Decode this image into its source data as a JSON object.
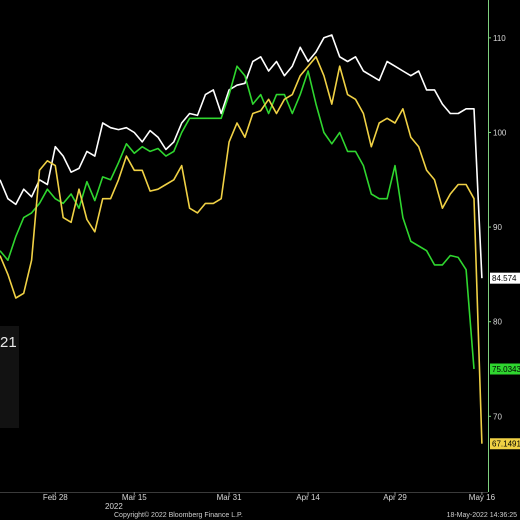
{
  "chart_data": {
    "type": "line",
    "title": "",
    "xlabel": "",
    "ylabel": "",
    "ylim": [
      62,
      114
    ],
    "yticks": [
      70,
      80,
      90,
      100,
      110
    ],
    "x_tick_labels": [
      {
        "label": "Feb 28",
        "index": 7
      },
      {
        "label": "Mar 15",
        "index": 17
      },
      {
        "label": "Mar 31",
        "index": 29
      },
      {
        "label": "Apr 14",
        "index": 39
      },
      {
        "label": "Apr 29",
        "index": 50
      },
      {
        "label": "May 16",
        "index": 61
      }
    ],
    "year_label": "2022",
    "legend_fragment": "21",
    "grid": false,
    "series": [
      {
        "color": "#ffffff",
        "last_label": "84.574",
        "values": [
          95,
          93,
          92.4,
          94,
          93.2,
          95,
          94.5,
          98.5,
          97.5,
          95.8,
          96.2,
          98,
          97.5,
          101,
          100.5,
          100.3,
          100.5,
          100,
          99,
          100.2,
          99.5,
          98.2,
          99,
          101,
          102,
          101.8,
          104,
          104.5,
          102,
          104.5,
          105,
          105.2,
          107.5,
          108,
          106.5,
          107.5,
          106,
          107,
          109,
          107.5,
          108.5,
          110,
          110.3,
          108,
          107.5,
          108,
          106.5,
          106,
          105.5,
          107.5,
          107,
          106.5,
          106,
          106.5,
          104.5,
          104.5,
          103,
          102,
          102,
          102.5,
          102.5,
          84.6
        ]
      },
      {
        "color": "#2fd62f",
        "last_label": "75.0343",
        "values": [
          87.5,
          86.5,
          89,
          91,
          91.5,
          92.5,
          94,
          93,
          92.5,
          93.5,
          92,
          94.8,
          92.8,
          95.3,
          95,
          96.8,
          98.8,
          97.8,
          98.5,
          98,
          98.3,
          97.5,
          98,
          100,
          101.5,
          101.5,
          101.5,
          101.5,
          101.5,
          104,
          107,
          106,
          103,
          104,
          102,
          104,
          104,
          102,
          104,
          106.5,
          103,
          100,
          98.8,
          100,
          98,
          98,
          96.5,
          93.5,
          93,
          93,
          96.5,
          91,
          88.5,
          88,
          87.5,
          86,
          86,
          87,
          86.8,
          85.5,
          75.0
        ]
      },
      {
        "color": "#f0d145",
        "last_label": "67.1491",
        "values": [
          87,
          85,
          82.5,
          83,
          86.5,
          96,
          97,
          96.5,
          91,
          90.5,
          94,
          90.8,
          89.5,
          93,
          93,
          95,
          97.5,
          96,
          96,
          93.8,
          94,
          94.5,
          95,
          96.5,
          92,
          91.5,
          92.5,
          92.5,
          93,
          99,
          101,
          99.5,
          102,
          102.3,
          103.5,
          102,
          103.5,
          104,
          106,
          107,
          108,
          106,
          103,
          107,
          104,
          103.5,
          102,
          98.5,
          101,
          101.5,
          101,
          102.5,
          99.5,
          98.5,
          96,
          95,
          92,
          93.5,
          94.5,
          94.5,
          93,
          67.1
        ]
      }
    ],
    "footer": {
      "copyright": "Copyright© 2022 Bloomberg Finance L.P.",
      "timestamp": "18-May-2022 14:36:25"
    }
  }
}
